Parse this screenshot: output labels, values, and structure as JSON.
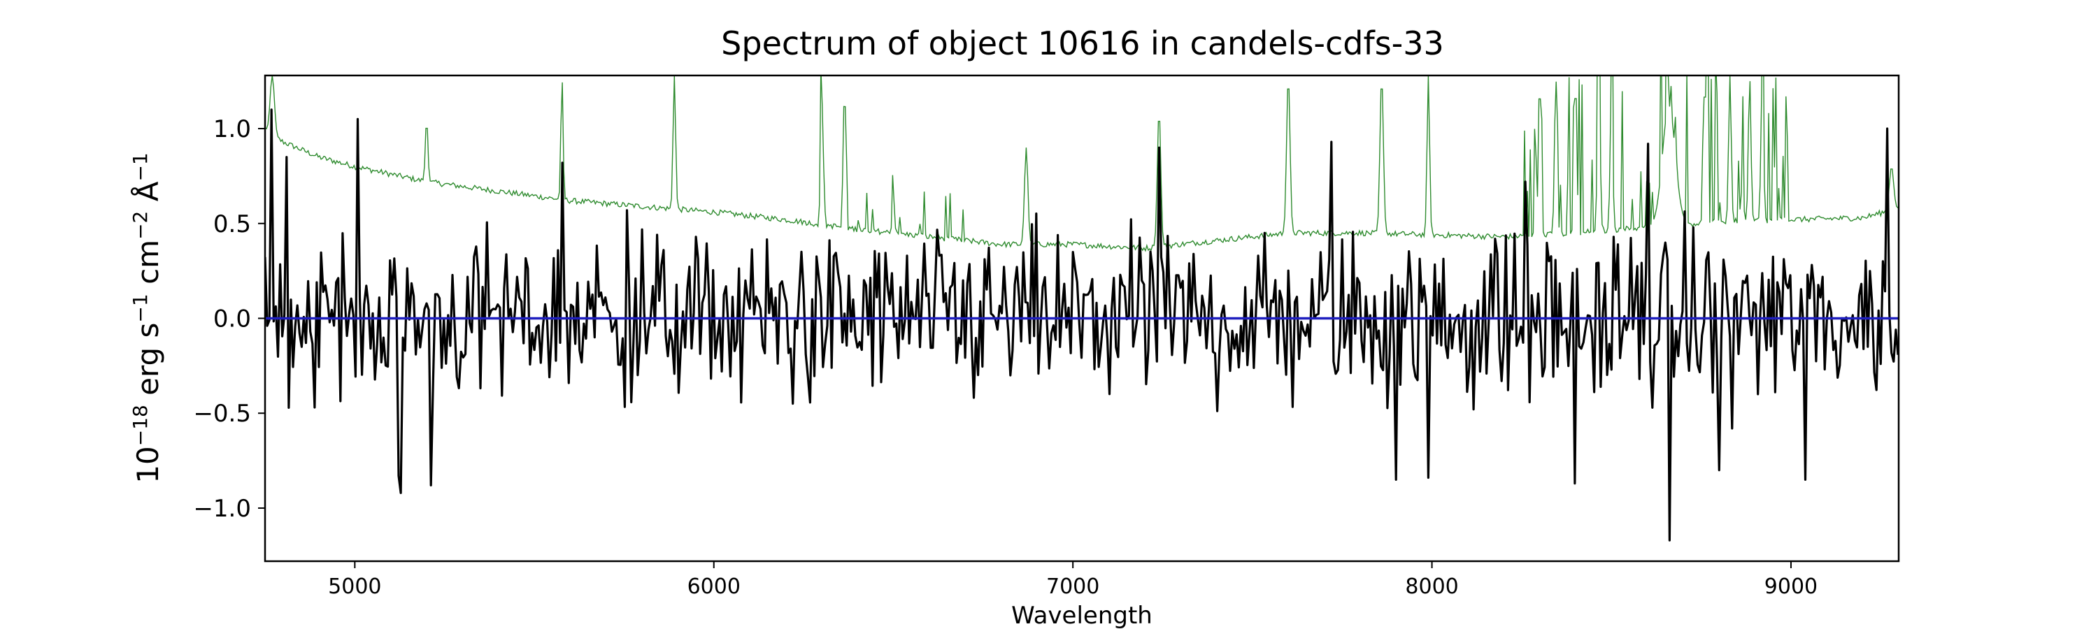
{
  "chart_data": {
    "type": "line",
    "title": "Spectrum of object 10616 in candels-cdfs-33",
    "xlabel": "Wavelength",
    "ylabel_parts": {
      "base": "10",
      "exp1": "−18",
      "unit_erg": " erg s",
      "exp2": "−1",
      "unit_cm": " cm",
      "exp3": "−2",
      "unit_ang": " Å",
      "exp4": "−1"
    },
    "xlim": [
      4750,
      9300
    ],
    "ylim": [
      -1.28,
      1.28
    ],
    "x_ticks": [
      5000,
      6000,
      7000,
      8000,
      9000
    ],
    "x_tick_labels": [
      "5000",
      "6000",
      "7000",
      "8000",
      "9000"
    ],
    "y_ticks": [
      -1.0,
      -0.5,
      0.0,
      0.5,
      1.0
    ],
    "y_tick_labels": [
      "−1.0",
      "−0.5",
      "0.0",
      "0.5",
      "1.0"
    ],
    "grid": false,
    "series": [
      {
        "color": "#2e8b2e",
        "style": "thin",
        "continuum": [
          [
            4750,
            1.0
          ],
          [
            4760,
            0.98
          ],
          [
            4800,
            0.93
          ],
          [
            4900,
            0.85
          ],
          [
            5000,
            0.8
          ],
          [
            5200,
            0.72
          ],
          [
            5400,
            0.67
          ],
          [
            5600,
            0.62
          ],
          [
            5800,
            0.59
          ],
          [
            6000,
            0.56
          ],
          [
            6200,
            0.52
          ],
          [
            6400,
            0.47
          ],
          [
            6600,
            0.43
          ],
          [
            6800,
            0.39
          ],
          [
            7000,
            0.39
          ],
          [
            7200,
            0.37
          ],
          [
            7400,
            0.41
          ],
          [
            7600,
            0.45
          ],
          [
            7800,
            0.45
          ],
          [
            8000,
            0.44
          ],
          [
            8200,
            0.43
          ],
          [
            8400,
            0.45
          ],
          [
            8600,
            0.48
          ],
          [
            8800,
            0.51
          ],
          [
            9000,
            0.52
          ],
          [
            9200,
            0.53
          ],
          [
            9300,
            0.58
          ]
        ],
        "features": [
          {
            "x": 4770,
            "y": 1.28,
            "w": 10
          },
          {
            "x": 5200,
            "y": 1.05,
            "w": 6
          },
          {
            "x": 5577,
            "y": 1.28,
            "w": 5
          },
          {
            "x": 5890,
            "y": 1.28,
            "w": 6
          },
          {
            "x": 6300,
            "y": 1.28,
            "w": 5
          },
          {
            "x": 6364,
            "y": 1.28,
            "w": 5
          },
          {
            "x": 6500,
            "y": 0.65,
            "w": 5
          },
          {
            "x": 6870,
            "y": 0.9,
            "w": 8
          },
          {
            "x": 7240,
            "y": 1.1,
            "w": 8
          },
          {
            "x": 7600,
            "y": 1.28,
            "w": 8
          },
          {
            "x": 7860,
            "y": 1.28,
            "w": 8
          },
          {
            "x": 7990,
            "y": 1.28,
            "w": 6
          },
          {
            "x": 8300,
            "y": 1.28,
            "w": 6
          },
          {
            "x": 8345,
            "y": 1.28,
            "w": 6
          },
          {
            "x": 8400,
            "y": 1.28,
            "w": 6
          },
          {
            "x": 8465,
            "y": 1.28,
            "w": 6
          },
          {
            "x": 8500,
            "y": 1.2,
            "w": 6
          },
          {
            "x": 8660,
            "y": 1.12,
            "w": 30
          },
          {
            "x": 8760,
            "y": 1.28,
            "w": 6
          },
          {
            "x": 8830,
            "y": 1.28,
            "w": 6
          },
          {
            "x": 8885,
            "y": 1.28,
            "w": 6
          },
          {
            "x": 8920,
            "y": 1.28,
            "w": 6
          },
          {
            "x": 9280,
            "y": 0.8,
            "w": 10
          }
        ]
      },
      {
        "color": "#000000",
        "style": "thick",
        "noise_amplitude": 0.27,
        "highlights": [
          {
            "x": 4770,
            "y": 1.1
          },
          {
            "x": 4810,
            "y": 0.85
          },
          {
            "x": 5010,
            "y": 1.05
          },
          {
            "x": 5120,
            "y": -0.83
          },
          {
            "x": 5130,
            "y": -0.92
          },
          {
            "x": 5210,
            "y": -0.88
          },
          {
            "x": 5580,
            "y": 0.82
          },
          {
            "x": 5760,
            "y": 0.57
          },
          {
            "x": 7240,
            "y": 0.9
          },
          {
            "x": 7720,
            "y": 0.93
          },
          {
            "x": 7900,
            "y": -0.85
          },
          {
            "x": 7990,
            "y": -0.84
          },
          {
            "x": 8260,
            "y": 0.72
          },
          {
            "x": 8400,
            "y": -0.87
          },
          {
            "x": 8600,
            "y": 0.92
          },
          {
            "x": 8660,
            "y": -1.17
          },
          {
            "x": 8800,
            "y": -0.8
          },
          {
            "x": 9040,
            "y": -0.85
          },
          {
            "x": 9270,
            "y": 1.0
          }
        ]
      },
      {
        "color": "#1f1fbf",
        "style": "flat",
        "value": 0.0
      }
    ]
  }
}
